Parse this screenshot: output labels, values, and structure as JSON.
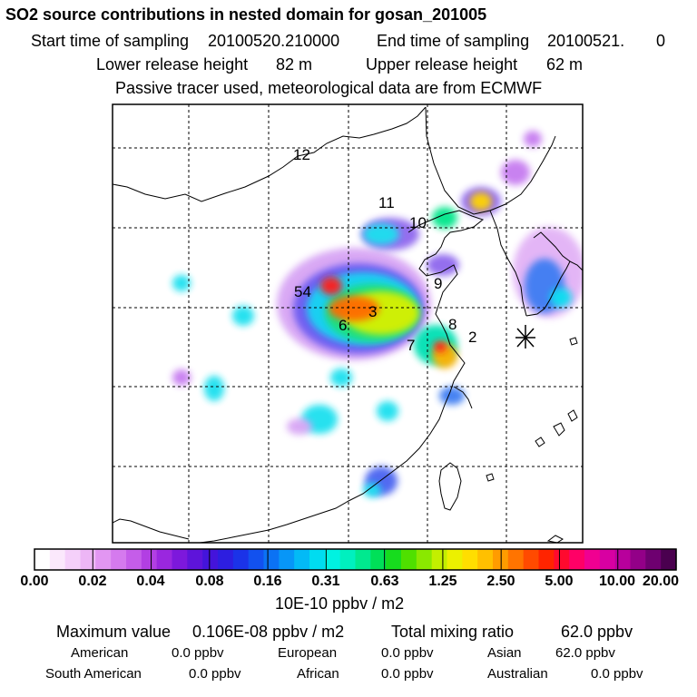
{
  "header": {
    "title": "SO2 source contributions in nested domain for gosan_201005",
    "start_label": "Start time of sampling",
    "start_value": "20100520.210000",
    "end_label": "End time of sampling",
    "end_value": "20100521.",
    "end_value2": "0",
    "lower_label": "Lower release height",
    "lower_value": "82 m",
    "upper_label": "Upper release height",
    "upper_value": "62 m",
    "note": "Passive tracer used, meteorological data are from ECMWF"
  },
  "map": {
    "region_labels": [
      "12",
      "11",
      "10",
      "9",
      "54",
      "3",
      "6",
      "8",
      "2",
      "7"
    ],
    "receptor_marker": "receptor-star"
  },
  "colorbar": {
    "ticks": [
      "0.00",
      "0.02",
      "0.04",
      "0.08",
      "0.16",
      "0.31",
      "0.63",
      "1.25",
      "2.50",
      "5.00",
      "10.00",
      "20.00"
    ],
    "colors": [
      "#ffffff",
      "#fbe8fc",
      "#f5d0fa",
      "#edb6f6",
      "#e296f2",
      "#d57aee",
      "#c55de9",
      "#b23fe3",
      "#9a27df",
      "#7d18dc",
      "#5e14da",
      "#4414db",
      "#2d1ee0",
      "#1b33e8",
      "#1251ef",
      "#0b72f4",
      "#0796f7",
      "#03baf6",
      "#00dcf0",
      "#00f2e1",
      "#00f0bf",
      "#00e98f",
      "#00e058",
      "#17dc1e",
      "#4fe000",
      "#8ae800",
      "#c3ef00",
      "#ecf000",
      "#ffde00",
      "#ffc000",
      "#ff9c00",
      "#ff7400",
      "#ff4a00",
      "#ff2400",
      "#ff0a2e",
      "#ff0066",
      "#f00091",
      "#d800a2",
      "#b8009c",
      "#930088",
      "#6e0070",
      "#4a004f"
    ],
    "units": "10E-10 ppbv / m2"
  },
  "summary": {
    "max_label": "Maximum value",
    "max_value": "0.106E-08 ppbv / m2",
    "total_label": "Total mixing ratio",
    "total_value": "62.0 ppbv",
    "regions": [
      {
        "name": "American",
        "value": "0.0 ppbv"
      },
      {
        "name": "European",
        "value": "0.0 ppbv"
      },
      {
        "name": "Asian",
        "value": "62.0 ppbv"
      },
      {
        "name": "South American",
        "value": "0.0 ppbv"
      },
      {
        "name": "African",
        "value": "0.0 ppbv"
      },
      {
        "name": "Australian",
        "value": "0.0 ppbv"
      }
    ]
  }
}
